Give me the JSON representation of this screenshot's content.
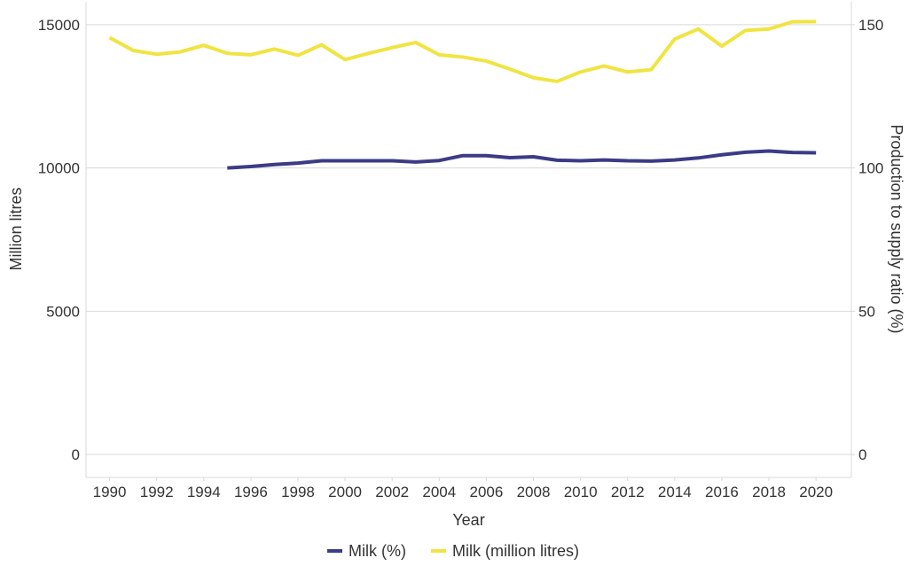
{
  "chart_data": {
    "type": "line",
    "xlabel": "Year",
    "ylabel_left": "Million litres",
    "ylabel_right": "Production to supply ratio (%)",
    "xlim": [
      1989,
      2021.5
    ],
    "ylim_left": [
      -800,
      15800
    ],
    "ylim_right": [
      -8,
      158
    ],
    "xticks": [
      "1990",
      "1992",
      "1994",
      "1996",
      "1998",
      "2000",
      "2002",
      "2004",
      "2006",
      "2008",
      "2010",
      "2012",
      "2014",
      "2016",
      "2018",
      "2020"
    ],
    "yticks_left": [
      "0",
      "5000",
      "10000",
      "15000"
    ],
    "yticks_right": [
      "0",
      "50",
      "100",
      "150"
    ],
    "grid": true,
    "legend_position": "bottom",
    "series": [
      {
        "name": "Milk (%)",
        "axis": "right",
        "color": "#3b3b86",
        "x": [
          1995,
          1996,
          1997,
          1998,
          1999,
          2000,
          2001,
          2002,
          2003,
          2004,
          2005,
          2006,
          2007,
          2008,
          2009,
          2010,
          2011,
          2012,
          2013,
          2014,
          2015,
          2016,
          2017,
          2018,
          2019,
          2020
        ],
        "y": [
          100,
          100.5,
          101.2,
          101.7,
          102.5,
          102.5,
          102.5,
          102.5,
          102.1,
          102.6,
          104.3,
          104.3,
          103.6,
          103.9,
          102.7,
          102.5,
          102.8,
          102.5,
          102.4,
          102.8,
          103.5,
          104.6,
          105.5,
          105.9,
          105.4,
          105.3
        ]
      },
      {
        "name": "Milk (million litres)",
        "axis": "left",
        "color": "#f0e442",
        "x": [
          1990,
          1991,
          1992,
          1993,
          1994,
          1995,
          1996,
          1997,
          1998,
          1999,
          2000,
          2001,
          2002,
          2003,
          2004,
          2005,
          2006,
          2007,
          2008,
          2009,
          2010,
          2011,
          2012,
          2013,
          2014,
          2015,
          2016,
          2017,
          2018,
          2019,
          2020
        ],
        "y": [
          14550,
          14100,
          13970,
          14050,
          14280,
          14000,
          13950,
          14150,
          13930,
          14300,
          13780,
          14000,
          14200,
          14380,
          13950,
          13870,
          13730,
          13450,
          13150,
          13020,
          13350,
          13560,
          13350,
          13430,
          14500,
          14850,
          14250,
          14800,
          14850,
          15100,
          15110
        ]
      }
    ]
  }
}
